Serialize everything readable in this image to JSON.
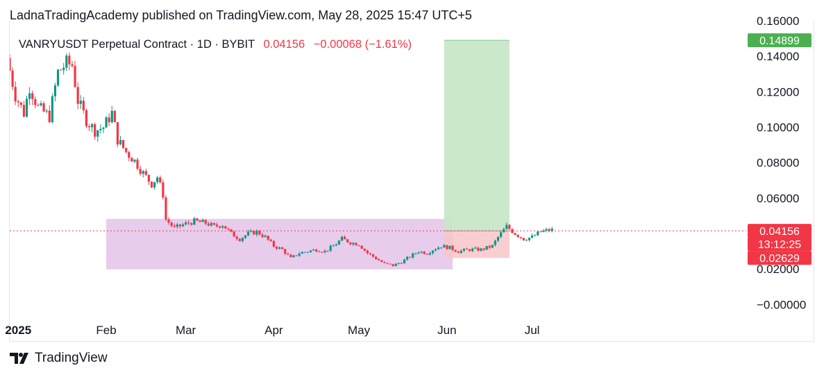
{
  "header": {
    "text": "LadnaTradingAcademy published on TradingView.com, May 28, 2025 15:47 UTC+5"
  },
  "legend": {
    "symbol": "VANRYUSDT Perpetual Contract · 1D · BYBIT",
    "last": "0.04156",
    "change": "−0.00068 (−1.61%)"
  },
  "footer": {
    "brand": "TradingView"
  },
  "colors": {
    "up": "#089981",
    "down": "#f23645",
    "consolidation": "#e1bee7",
    "target": "#c8e6c9",
    "stop": "#f8c6c9",
    "price_line": "#f23645"
  },
  "chart_data": {
    "type": "candlestick",
    "ylim": [
      -0.01,
      0.16
    ],
    "y_ticks": [
      "0.16000",
      "0.14000",
      "0.12000",
      "0.10000",
      "0.08000",
      "0.06000",
      "0.02000",
      "−0.00000"
    ],
    "y_tick_values": [
      0.16,
      0.14,
      0.12,
      0.1,
      0.08,
      0.06,
      0.02,
      0.0
    ],
    "x_ticks": [
      {
        "label": "2025",
        "date": "2025-01-01",
        "bold": true
      },
      {
        "label": "Feb",
        "date": "2025-02-01"
      },
      {
        "label": "Mar",
        "date": "2025-03-01"
      },
      {
        "label": "Apr",
        "date": "2025-04-01"
      },
      {
        "label": "May",
        "date": "2025-05-01"
      },
      {
        "label": "Jun",
        "date": "2025-06-01"
      },
      {
        "label": "Jul",
        "date": "2025-07-01"
      }
    ],
    "x_range": [
      "2024-12-29",
      "2025-08-30"
    ],
    "anchors": [
      [
        "2024-12-29",
        0.139
      ],
      [
        "2025-01-01",
        0.118
      ],
      [
        "2025-01-04",
        0.108
      ],
      [
        "2025-01-06",
        0.123
      ],
      [
        "2025-01-09",
        0.111
      ],
      [
        "2025-01-13",
        0.106
      ],
      [
        "2025-01-16",
        0.131
      ],
      [
        "2025-01-19",
        0.136
      ],
      [
        "2025-01-21",
        0.135
      ],
      [
        "2025-01-23",
        0.115
      ],
      [
        "2025-01-26",
        0.104
      ],
      [
        "2025-01-29",
        0.098
      ],
      [
        "2025-02-01",
        0.1
      ],
      [
        "2025-02-04",
        0.108
      ],
      [
        "2025-02-06",
        0.093
      ],
      [
        "2025-02-09",
        0.086
      ],
      [
        "2025-02-12",
        0.081
      ],
      [
        "2025-02-15",
        0.074
      ],
      [
        "2025-02-18",
        0.068
      ],
      [
        "2025-02-20",
        0.072
      ],
      [
        "2025-02-22",
        0.062
      ],
      [
        "2025-02-23",
        0.048
      ],
      [
        "2025-02-26",
        0.043
      ],
      [
        "2025-03-01",
        0.045
      ],
      [
        "2025-03-05",
        0.047
      ],
      [
        "2025-03-09",
        0.046
      ],
      [
        "2025-03-12",
        0.044
      ],
      [
        "2025-03-15",
        0.045
      ],
      [
        "2025-03-18",
        0.04
      ],
      [
        "2025-03-21",
        0.037
      ],
      [
        "2025-03-24",
        0.04
      ],
      [
        "2025-03-27",
        0.041
      ],
      [
        "2025-03-30",
        0.038
      ],
      [
        "2025-04-02",
        0.033
      ],
      [
        "2025-04-05",
        0.031
      ],
      [
        "2025-04-08",
        0.026
      ],
      [
        "2025-04-11",
        0.029
      ],
      [
        "2025-04-14",
        0.03
      ],
      [
        "2025-04-17",
        0.031
      ],
      [
        "2025-04-20",
        0.03
      ],
      [
        "2025-04-23",
        0.033
      ],
      [
        "2025-04-26",
        0.037
      ],
      [
        "2025-04-29",
        0.035
      ],
      [
        "2025-05-02",
        0.034
      ],
      [
        "2025-05-05",
        0.029
      ],
      [
        "2025-05-08",
        0.026
      ],
      [
        "2025-05-11",
        0.023
      ],
      [
        "2025-05-14",
        0.022
      ],
      [
        "2025-05-17",
        0.024
      ],
      [
        "2025-05-20",
        0.027
      ],
      [
        "2025-05-23",
        0.03
      ],
      [
        "2025-05-26",
        0.029
      ],
      [
        "2025-05-28",
        0.031
      ],
      [
        "2025-05-31",
        0.033
      ],
      [
        "2025-06-03",
        0.032
      ],
      [
        "2025-06-06",
        0.03
      ],
      [
        "2025-06-10",
        0.031
      ],
      [
        "2025-06-14",
        0.031
      ],
      [
        "2025-06-18",
        0.033
      ],
      [
        "2025-06-20",
        0.038
      ],
      [
        "2025-06-23",
        0.044
      ],
      [
        "2025-06-26",
        0.04
      ],
      [
        "2025-06-29",
        0.037
      ],
      [
        "2025-07-02",
        0.038
      ],
      [
        "2025-07-05",
        0.041
      ],
      [
        "2025-07-08",
        0.042
      ]
    ],
    "last_price": 0.04156,
    "consolidation_zone": {
      "from": "2025-02-01",
      "to": "2025-06-03",
      "low": 0.0198,
      "high": 0.0483
    },
    "long_position": {
      "from": "2025-05-31",
      "to": "2025-06-23",
      "entry": 0.04156,
      "target": 0.14899,
      "stop": 0.02629
    },
    "price_tags": [
      {
        "label": "0.14899",
        "value": 0.14899,
        "color": "#4caf50"
      },
      {
        "label": "0.04156",
        "value": 0.04156,
        "color": "#f23645"
      },
      {
        "label": "13:12:25",
        "value": 0.0341,
        "color": "#f23645"
      },
      {
        "label": "0.02629",
        "value": 0.02629,
        "color": "#f23645"
      }
    ]
  }
}
